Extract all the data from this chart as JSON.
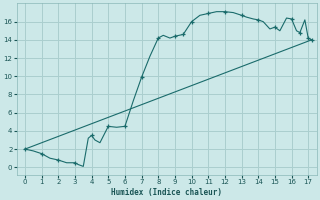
{
  "xlabel": "Humidex (Indice chaleur)",
  "bg_color": "#cce8e8",
  "grid_color": "#aacece",
  "line_color": "#1a6b6b",
  "xlim": [
    -0.5,
    17.5
  ],
  "ylim": [
    -0.8,
    18.0
  ],
  "xticks": [
    0,
    1,
    2,
    3,
    4,
    5,
    6,
    7,
    8,
    9,
    10,
    11,
    12,
    13,
    14,
    15,
    16,
    17
  ],
  "yticks": [
    0,
    2,
    4,
    6,
    8,
    10,
    12,
    14,
    16
  ],
  "curve1_x": [
    0,
    0.5,
    1.0,
    1.5,
    2.0,
    2.5,
    3.0,
    3.2,
    3.5,
    3.8,
    4.0,
    4.2,
    4.5,
    5.0,
    5.5,
    6.0,
    6.5,
    7.0,
    7.5,
    8.0,
    8.3,
    8.7,
    9.0,
    9.5,
    10.0,
    10.5,
    11.0,
    11.5,
    12.0,
    12.5,
    13.0,
    13.3,
    13.7,
    14.0,
    14.3,
    14.7,
    15.0,
    15.3,
    15.7,
    16.0,
    16.3,
    16.5,
    16.8,
    17.0,
    17.2
  ],
  "curve1_y": [
    2.0,
    1.8,
    1.5,
    1.0,
    0.8,
    0.5,
    0.5,
    0.3,
    0.1,
    3.2,
    3.5,
    3.0,
    2.7,
    4.5,
    4.4,
    4.5,
    7.3,
    9.9,
    12.2,
    14.2,
    14.5,
    14.2,
    14.4,
    14.6,
    16.0,
    16.7,
    16.9,
    17.1,
    17.1,
    17.0,
    16.7,
    16.5,
    16.3,
    16.2,
    16.0,
    15.2,
    15.4,
    15.0,
    16.4,
    16.3,
    15.0,
    14.8,
    16.2,
    14.2,
    14.0
  ],
  "curve2_x": [
    0,
    17.2
  ],
  "curve2_y": [
    2.0,
    14.0
  ],
  "markers1_x": [
    0,
    1,
    2,
    3,
    4.0,
    5.0,
    6.0,
    7.0,
    8.0,
    9.0,
    9.5,
    10.0,
    11.0,
    12.0,
    13.0,
    14.0,
    15.0,
    16.0,
    16.5,
    17.0,
    17.2
  ],
  "markers1_y": [
    2.0,
    1.5,
    0.8,
    0.5,
    3.5,
    4.5,
    4.5,
    9.9,
    14.2,
    14.4,
    14.6,
    16.0,
    16.9,
    17.1,
    16.7,
    16.2,
    15.4,
    16.3,
    14.8,
    14.2,
    14.0
  ]
}
